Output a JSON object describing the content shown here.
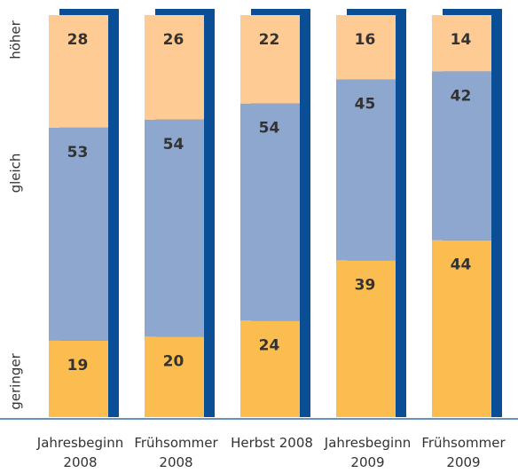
{
  "chart_data": {
    "type": "stacked_bar",
    "categories": [
      "Jahresbeginn 2008",
      "Frühsommer 2008",
      "Herbst 2008",
      "Jahresbeginn 2009",
      "Frühsommer 2009"
    ],
    "series": [
      {
        "name": "geringer",
        "color": "#fbbd50",
        "values": [
          19,
          20,
          24,
          39,
          44
        ]
      },
      {
        "name": "gleich",
        "color": "#8ea7cf",
        "values": [
          53,
          54,
          54,
          45,
          42
        ]
      },
      {
        "name": "höher",
        "color": "#fecb94",
        "values": [
          28,
          26,
          22,
          16,
          14
        ]
      }
    ],
    "shadow_color": "#0a4f96",
    "ylim": [
      0,
      100
    ]
  }
}
